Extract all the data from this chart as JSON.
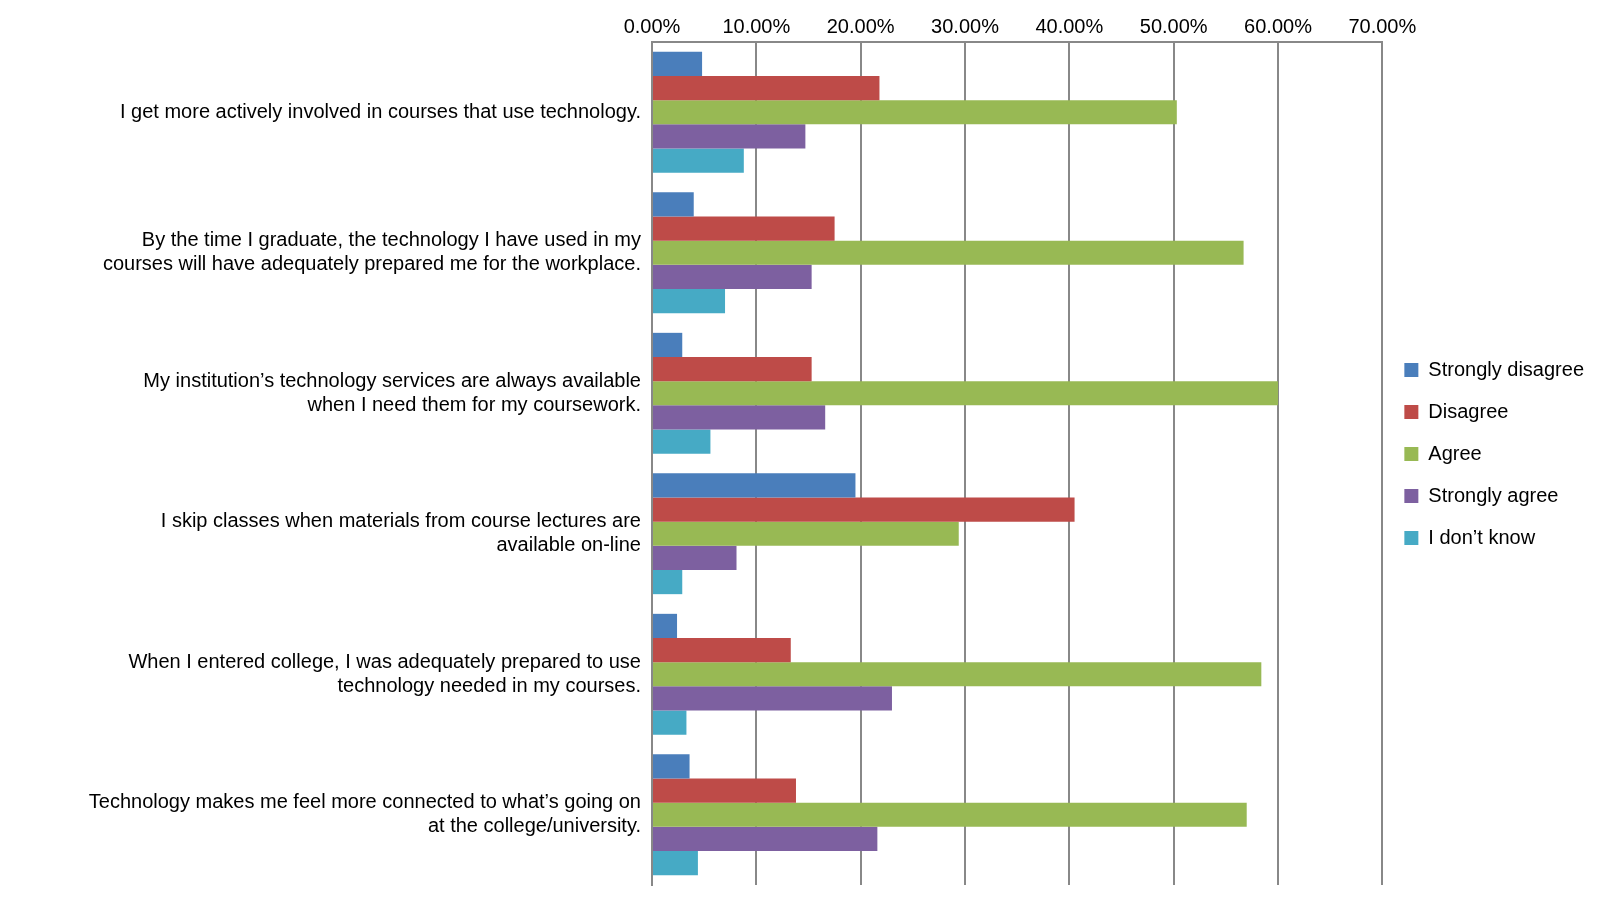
{
  "chart_data": {
    "type": "bar",
    "orientation": "horizontal",
    "categories": [
      "I get more actively involved in courses that use technology.",
      "By the time I graduate, the technology I have used in my courses will have adequately prepared me for the workplace.",
      "My institution’s technology services are always available when I need them for my coursework.",
      "I skip classes when materials from course lectures are available on-line",
      "When I entered college, I was adequately prepared to use technology needed in my courses.",
      "Technology makes me feel more connected to what’s going on at the college/university."
    ],
    "series": [
      {
        "name": "Strongly disagree",
        "color": "#4a7ebb",
        "values": [
          4.8,
          4.0,
          2.9,
          19.5,
          2.4,
          3.6
        ]
      },
      {
        "name": "Disagree",
        "color": "#be4b48",
        "values": [
          21.8,
          17.5,
          15.3,
          40.5,
          13.3,
          13.8
        ]
      },
      {
        "name": "Agree",
        "color": "#98b954",
        "values": [
          50.3,
          56.7,
          60.0,
          29.4,
          58.4,
          57.0
        ]
      },
      {
        "name": "Strongly agree",
        "color": "#7d60a0",
        "values": [
          14.7,
          15.3,
          16.6,
          8.1,
          23.0,
          21.6
        ]
      },
      {
        "name": "I don’t know",
        "color": "#46aac5",
        "values": [
          8.8,
          7.0,
          5.6,
          2.9,
          3.3,
          4.4
        ]
      }
    ],
    "xlim": [
      0,
      70
    ],
    "xticks": [
      {
        "value": 0,
        "label": "0.00%"
      },
      {
        "value": 10,
        "label": "10.00%"
      },
      {
        "value": 20,
        "label": "20.00%"
      },
      {
        "value": 30,
        "label": "30.00%"
      },
      {
        "value": 40,
        "label": "40.00%"
      },
      {
        "value": 50,
        "label": "50.00%"
      },
      {
        "value": 60,
        "label": "60.00%"
      },
      {
        "value": 70,
        "label": "70.00%"
      }
    ],
    "grid": "x",
    "legend": "right"
  }
}
